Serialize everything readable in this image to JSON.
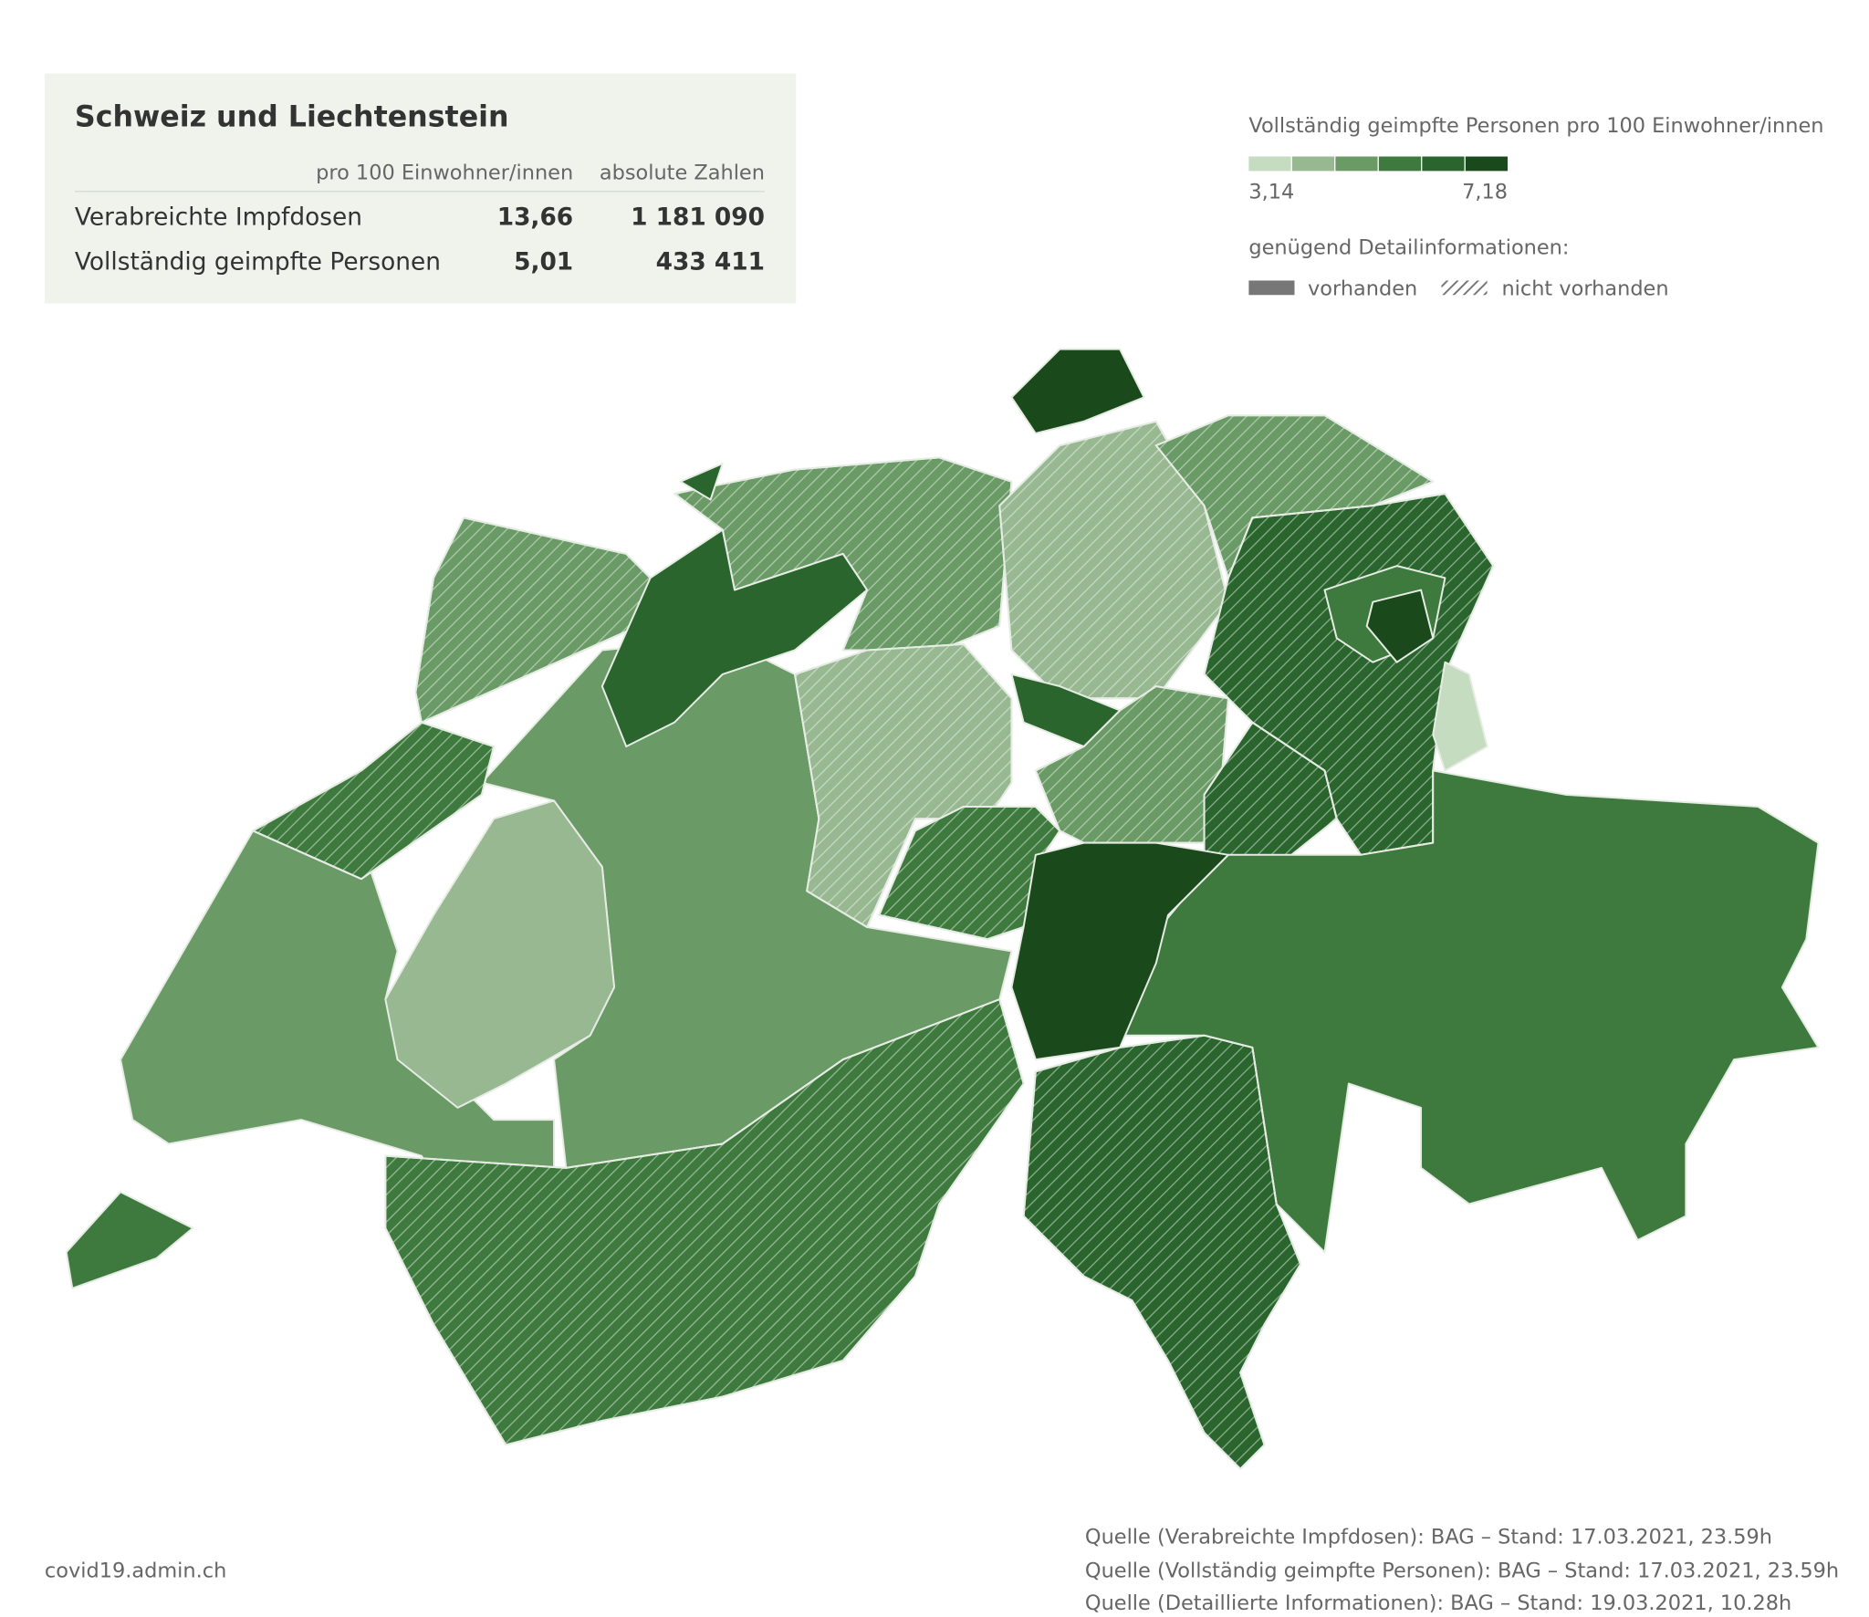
{
  "header": {
    "title": "Schweiz und Liechtenstein"
  },
  "table": {
    "columns": [
      "pro 100 Einwohner/innen",
      "absolute Zahlen"
    ],
    "rows": [
      [
        "Verabreichte Impfdosen",
        "13,66",
        "1 181 090"
      ],
      [
        "Vollständig geimpfte Personen",
        "5,01",
        "433 411"
      ]
    ]
  },
  "legend": {
    "title": "Vollständig geimpfte Personen pro 100 Einwohner/innen",
    "min": "3,14",
    "max": "7,18",
    "detail_title": "genügend Detailinformationen:",
    "available": "vorhanden",
    "not_available": "nicht vorhanden"
  },
  "footer": {
    "site": "covid19.admin.ch",
    "sources": [
      "Quelle (Verabreichte Impfdosen): BAG – Stand: 17.03.2021, 23.59h",
      "Quelle (Vollständig geimpfte Personen): BAG – Stand: 17.03.2021, 23.59h",
      "Quelle (Detaillierte Informationen): BAG – Stand: 19.03.2021, 10.28h"
    ]
  }
}
